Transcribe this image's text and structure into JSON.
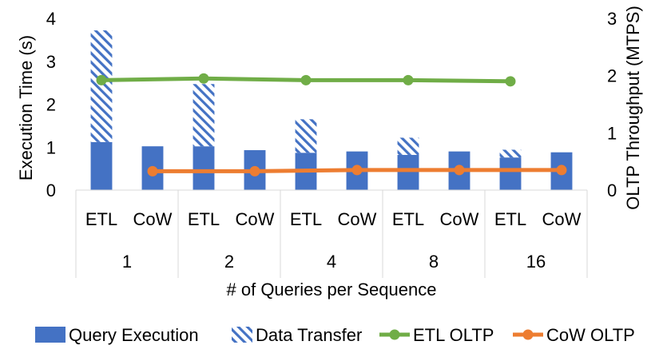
{
  "chart_data": {
    "type": "bar",
    "xlabel": "# of Queries per Sequence",
    "ylabel": "Execution Time (s)",
    "y2label": "OLTP Throughput  (MTPS)",
    "ylim": [
      0,
      4
    ],
    "y2lim": [
      0,
      3
    ],
    "yticks": [
      "0",
      "1",
      "2",
      "3",
      "4"
    ],
    "y2ticks": [
      "0",
      "1",
      "2",
      "3"
    ],
    "groups": [
      "1",
      "2",
      "4",
      "8",
      "16"
    ],
    "subcategories": [
      "ETL",
      "CoW"
    ],
    "bar_series": [
      {
        "name": "Query Execution",
        "pattern": "solid",
        "color": "#4472C4",
        "values": [
          [
            1.12,
            1.02
          ],
          [
            1.02,
            0.93
          ],
          [
            0.87,
            0.9
          ],
          [
            0.82,
            0.9
          ],
          [
            0.76,
            0.88
          ]
        ]
      },
      {
        "name": "Data Transfer",
        "pattern": "hatched",
        "color": "#4472C4",
        "values": [
          [
            2.6,
            0
          ],
          [
            1.45,
            0
          ],
          [
            0.78,
            0
          ],
          [
            0.4,
            0
          ],
          [
            0.18,
            0
          ]
        ]
      }
    ],
    "line_series": [
      {
        "name": "ETL OLTP",
        "color": "#70AD47",
        "axis": "right",
        "subcategory": "ETL",
        "values": [
          1.92,
          1.95,
          1.92,
          1.92,
          1.9
        ]
      },
      {
        "name": "CoW OLTP",
        "color": "#ED7D31",
        "axis": "right",
        "subcategory": "CoW",
        "values": [
          0.33,
          0.33,
          0.35,
          0.35,
          0.35
        ]
      }
    ],
    "grid": false,
    "legend_position": "bottom"
  }
}
